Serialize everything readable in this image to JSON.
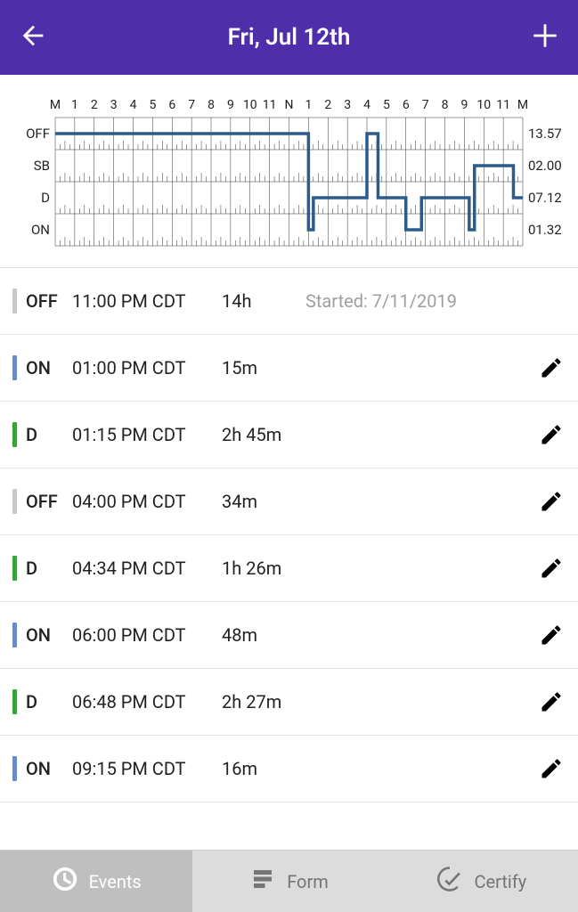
{
  "header": {
    "title": "Fri, Jul 12th"
  },
  "colors": {
    "header_bg": "#4f2ea9",
    "duty_line": "#2c5b8c",
    "status_off": "#c8c8c8",
    "status_on": "#6a8bc7",
    "status_d": "#3aa23a",
    "status_sb": "#d9a441",
    "text": "#222222",
    "muted": "#9e9e9e",
    "tab_inactive_bg": "#dcdcdc",
    "tab_active_bg": "#bfbfbf"
  },
  "chart": {
    "hour_labels": [
      "M",
      "1",
      "2",
      "3",
      "4",
      "5",
      "6",
      "7",
      "8",
      "9",
      "10",
      "11",
      "N",
      "1",
      "2",
      "3",
      "4",
      "5",
      "6",
      "7",
      "8",
      "9",
      "10",
      "11",
      "M"
    ],
    "row_labels": [
      "OFF",
      "SB",
      "D",
      "ON"
    ],
    "totals": [
      "13.57",
      "02.00",
      "07.12",
      "01.32"
    ],
    "series": [
      {
        "start_hr": 0,
        "end_hr": 13.0,
        "row": 0
      },
      {
        "start_hr": 13.0,
        "end_hr": 13.25,
        "row": 3
      },
      {
        "start_hr": 13.25,
        "end_hr": 16.0,
        "row": 2
      },
      {
        "start_hr": 16.0,
        "end_hr": 16.57,
        "row": 0
      },
      {
        "start_hr": 16.57,
        "end_hr": 18.0,
        "row": 2
      },
      {
        "start_hr": 18.0,
        "end_hr": 18.8,
        "row": 3
      },
      {
        "start_hr": 18.8,
        "end_hr": 21.25,
        "row": 2
      },
      {
        "start_hr": 21.25,
        "end_hr": 21.52,
        "row": 3
      },
      {
        "start_hr": 21.52,
        "end_hr": 23.52,
        "row": 1
      },
      {
        "start_hr": 23.52,
        "end_hr": 24.0,
        "row": 2
      }
    ]
  },
  "events": [
    {
      "status": "OFF",
      "time": "11:00 PM CDT",
      "duration": "14h",
      "extra": "Started: 7/11/2019",
      "editable": false,
      "bar_color": "#c8c8c8"
    },
    {
      "status": "ON",
      "time": "01:00 PM CDT",
      "duration": "15m",
      "extra": "",
      "editable": true,
      "bar_color": "#6a8bc7"
    },
    {
      "status": "D",
      "time": "01:15 PM CDT",
      "duration": "2h 45m",
      "extra": "",
      "editable": true,
      "bar_color": "#3aa23a"
    },
    {
      "status": "OFF",
      "time": "04:00 PM CDT",
      "duration": "34m",
      "extra": "",
      "editable": true,
      "bar_color": "#c8c8c8"
    },
    {
      "status": "D",
      "time": "04:34 PM CDT",
      "duration": "1h 26m",
      "extra": "",
      "editable": true,
      "bar_color": "#3aa23a"
    },
    {
      "status": "ON",
      "time": "06:00 PM CDT",
      "duration": "48m",
      "extra": "",
      "editable": true,
      "bar_color": "#6a8bc7"
    },
    {
      "status": "D",
      "time": "06:48 PM CDT",
      "duration": "2h 27m",
      "extra": "",
      "editable": true,
      "bar_color": "#3aa23a"
    },
    {
      "status": "ON",
      "time": "09:15 PM CDT",
      "duration": "16m",
      "extra": "",
      "editable": true,
      "bar_color": "#6a8bc7"
    }
  ],
  "tabs": [
    {
      "label": "Events",
      "icon": "clock",
      "active": true
    },
    {
      "label": "Form",
      "icon": "form",
      "active": false
    },
    {
      "label": "Certify",
      "icon": "check",
      "active": false
    }
  ]
}
